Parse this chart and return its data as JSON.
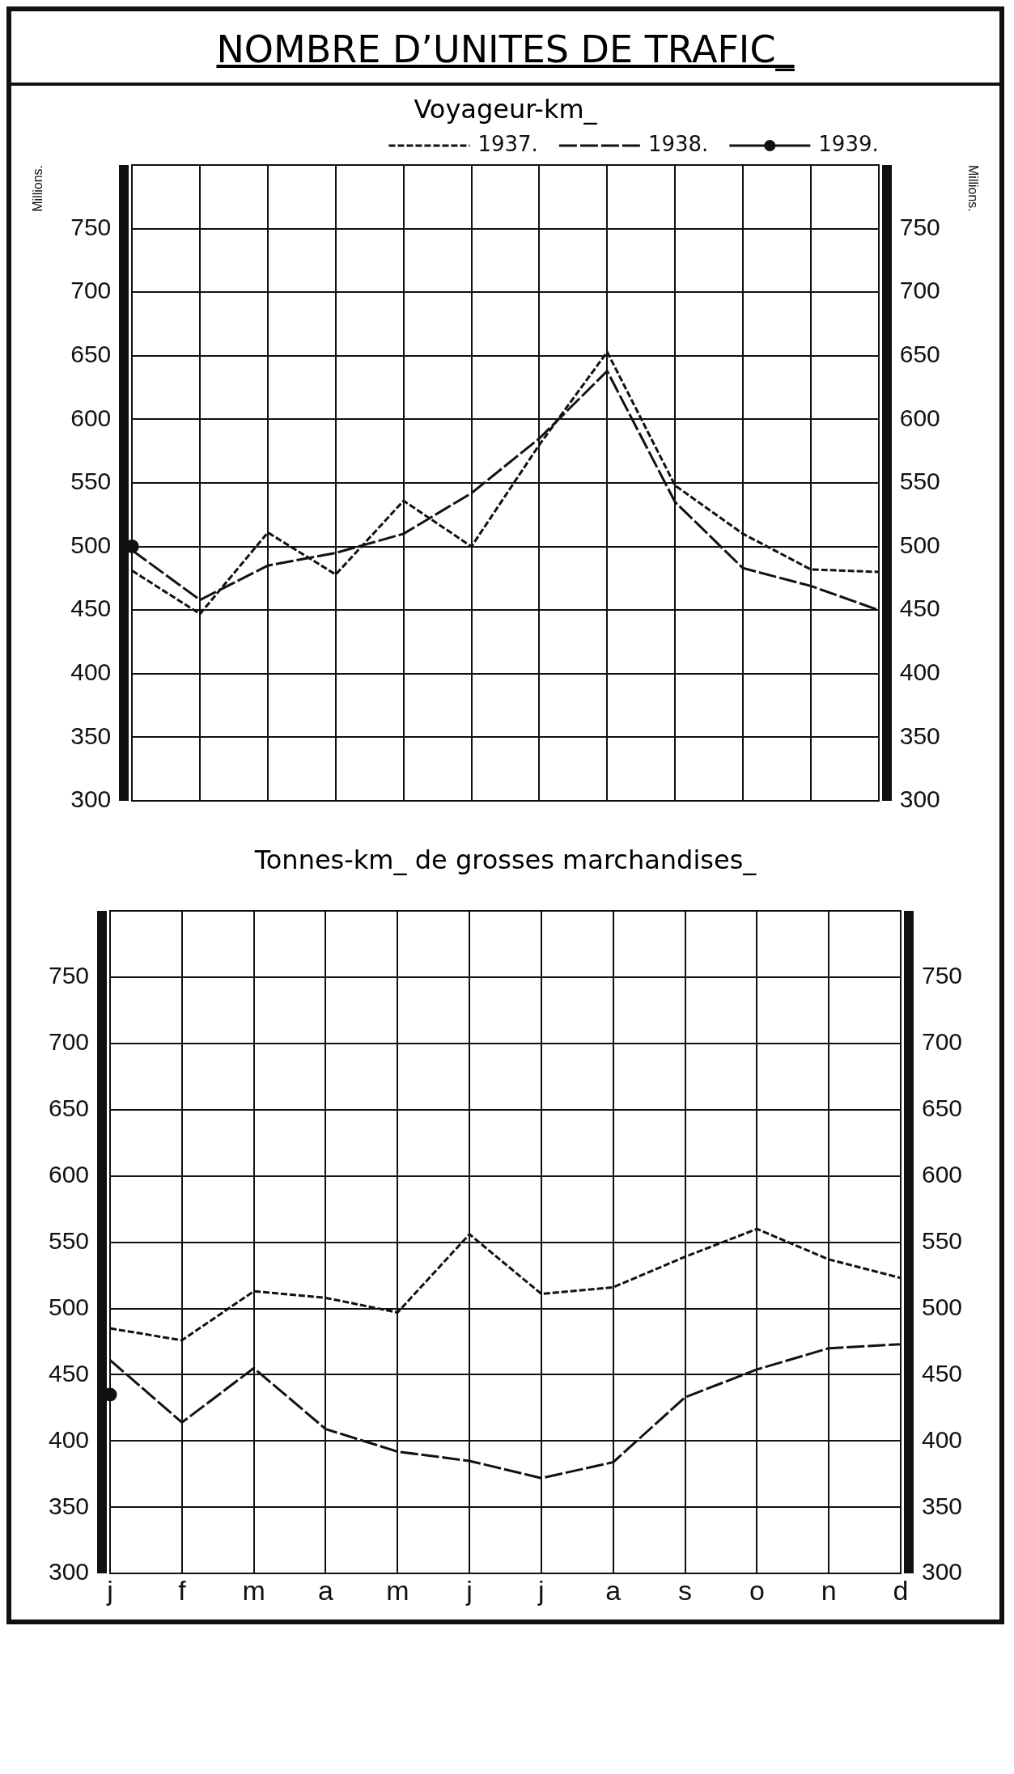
{
  "chart_data": [
    {
      "type": "line",
      "title": "NOMBRE D’UNITES DE TRAFIC_",
      "subtitle": "Voyageur-km_",
      "ylabel": "Millions.",
      "y2label": "Millions.",
      "categories": [
        null,
        null,
        null,
        null,
        null,
        null,
        null,
        null,
        null,
        null,
        null,
        null
      ],
      "series": [
        {
          "name": "1937.",
          "color": "#111111",
          "line_style": "dotted",
          "values": [
            481,
            447,
            511,
            478,
            536,
            500,
            580,
            653,
            548,
            510,
            482,
            480
          ]
        },
        {
          "name": "1938.",
          "color": "#111111",
          "line_style": "dashed",
          "values": [
            497,
            458,
            485,
            495,
            510,
            542,
            585,
            638,
            535,
            483,
            469,
            450
          ]
        },
        {
          "name": "1939.",
          "color": "#111111",
          "line_style": "solid",
          "marker": "circle",
          "values": [
            500,
            null,
            null,
            null,
            null,
            null,
            null,
            null,
            null,
            null,
            null,
            null
          ]
        }
      ],
      "ylim": [
        300,
        800
      ],
      "yticks": [
        300,
        350,
        400,
        450,
        500,
        550,
        600,
        650,
        700,
        750,
        {
          "value": 800,
          "label": null
        }
      ],
      "y2lim": [
        300,
        800
      ],
      "y2ticks": [
        300,
        350,
        400,
        450,
        500,
        550,
        600,
        650,
        700,
        750
      ],
      "grid": true,
      "legend": "top",
      "marker": "none",
      "tick_labels": "y"
    },
    {
      "type": "line",
      "title": "Tonnes-km_ de grosses marchandises_",
      "categories": [
        "j",
        "f",
        "m",
        "a",
        "m",
        "j",
        "j",
        "a",
        "s",
        "o",
        "n",
        "d"
      ],
      "series": [
        {
          "color": "#111111",
          "line_style": "dotted",
          "values": [
            485,
            476,
            513,
            508,
            497,
            556,
            511,
            516,
            539,
            560,
            537,
            523
          ]
        },
        {
          "color": "#111111",
          "line_style": "dashed",
          "values": [
            461,
            414,
            455,
            409,
            392,
            385,
            372,
            384,
            433,
            454,
            470,
            473
          ]
        },
        {
          "color": "#111111",
          "line_style": "solid",
          "marker": "circle",
          "values": [
            435,
            null,
            null,
            null,
            null,
            null,
            null,
            null,
            null,
            null,
            null,
            null
          ]
        }
      ],
      "ylim": [
        300,
        800
      ],
      "yticks": [
        300,
        350,
        400,
        450,
        500,
        550,
        600,
        650,
        700,
        750,
        {
          "value": 800,
          "label": null
        }
      ],
      "y2lim": [
        300,
        800
      ],
      "y2ticks": [
        300,
        350,
        400,
        450,
        500,
        550,
        600,
        650,
        700,
        750
      ],
      "grid": true,
      "legend": false,
      "marker": "none"
    }
  ]
}
